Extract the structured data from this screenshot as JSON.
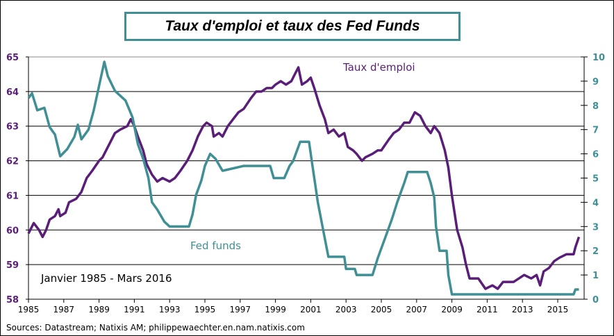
{
  "chart_data": {
    "type": "line",
    "title": "Taux d'emploi et taux des Fed Funds",
    "annotation": "Janvier 1985 - Mars 2016",
    "source": "Sources: Datastream; Natixis AM; philippewaechter.en.nam.natixis.com",
    "xlim": [
      1985,
      2016.5
    ],
    "x_ticks": [
      "1985",
      "1987",
      "1989",
      "1991",
      "1993",
      "1995",
      "1997",
      "1999",
      "2001",
      "2003",
      "2005",
      "2007",
      "2009",
      "2011",
      "2013",
      "2015"
    ],
    "y_left": {
      "lim": [
        58,
        65
      ],
      "ticks": [
        "58",
        "59",
        "60",
        "61",
        "62",
        "63",
        "64",
        "65"
      ]
    },
    "y_right": {
      "lim": [
        0,
        10
      ],
      "ticks": [
        "0",
        "1",
        "2",
        "3",
        "4",
        "5",
        "6",
        "7",
        "8",
        "9",
        "10"
      ]
    },
    "grid": true,
    "series": [
      {
        "name": "Taux d'emploi",
        "axis": "left",
        "color": "#5a1e78",
        "x": [
          1985.0,
          1985.3,
          1985.6,
          1985.8,
          1986.0,
          1986.2,
          1986.5,
          1986.7,
          1986.8,
          1987.1,
          1987.3,
          1987.7,
          1988.0,
          1988.3,
          1988.6,
          1989.0,
          1989.2,
          1989.4,
          1989.7,
          1989.9,
          1990.2,
          1990.6,
          1990.8,
          1991.0,
          1991.2,
          1991.5,
          1991.7,
          1992.0,
          1992.3,
          1992.6,
          1993.0,
          1993.3,
          1993.6,
          1994.0,
          1994.3,
          1994.6,
          1994.9,
          1995.1,
          1995.4,
          1995.5,
          1995.8,
          1996.0,
          1996.3,
          1996.6,
          1996.9,
          1997.2,
          1997.6,
          1997.9,
          1998.2,
          1998.5,
          1998.8,
          1999.0,
          1999.3,
          1999.6,
          1999.9,
          2000.1,
          2000.3,
          2000.5,
          2000.8,
          2001.0,
          2001.2,
          2001.5,
          2001.8,
          2002.0,
          2002.3,
          2002.6,
          2002.9,
          2003.1,
          2003.4,
          2003.6,
          2003.9,
          2004.1,
          2004.5,
          2004.8,
          2005.0,
          2005.4,
          2005.7,
          2006.0,
          2006.3,
          2006.6,
          2006.9,
          2007.2,
          2007.5,
          2007.8,
          2008.0,
          2008.3,
          2008.6,
          2008.8,
          2009.0,
          2009.3,
          2009.6,
          2009.8,
          2010.0,
          2010.3,
          2010.5,
          2010.9,
          2011.3,
          2011.6,
          2011.9,
          2012.2,
          2012.5,
          2012.8,
          2013.1,
          2013.5,
          2013.8,
          2014.0,
          2014.2,
          2014.5,
          2014.8,
          2015.1,
          2015.5,
          2015.9,
          2016.0,
          2016.2
        ],
        "y": [
          59.9,
          60.2,
          60.0,
          59.8,
          60.0,
          60.3,
          60.4,
          60.6,
          60.4,
          60.5,
          60.8,
          60.9,
          61.1,
          61.5,
          61.7,
          62.0,
          62.1,
          62.3,
          62.6,
          62.8,
          62.9,
          63.0,
          63.2,
          63.0,
          62.7,
          62.3,
          61.9,
          61.6,
          61.4,
          61.5,
          61.4,
          61.5,
          61.7,
          62.0,
          62.3,
          62.7,
          63.0,
          63.1,
          63.0,
          62.7,
          62.8,
          62.7,
          63.0,
          63.2,
          63.4,
          63.5,
          63.8,
          64.0,
          64.0,
          64.1,
          64.1,
          64.2,
          64.3,
          64.2,
          64.3,
          64.5,
          64.7,
          64.2,
          64.3,
          64.4,
          64.1,
          63.6,
          63.2,
          62.8,
          62.9,
          62.7,
          62.8,
          62.4,
          62.3,
          62.2,
          62.0,
          62.1,
          62.2,
          62.3,
          62.3,
          62.6,
          62.8,
          62.9,
          63.1,
          63.1,
          63.4,
          63.3,
          63.0,
          62.8,
          63.0,
          62.8,
          62.3,
          61.8,
          61.0,
          60.0,
          59.5,
          59.0,
          58.6,
          58.6,
          58.6,
          58.3,
          58.4,
          58.3,
          58.5,
          58.5,
          58.5,
          58.6,
          58.7,
          58.6,
          58.7,
          58.4,
          58.8,
          58.9,
          59.1,
          59.2,
          59.3,
          59.3,
          59.5,
          59.8
        ]
      },
      {
        "name": "Fed funds",
        "axis": "right",
        "color": "#3f8f94",
        "x": [
          1985.0,
          1985.2,
          1985.5,
          1985.9,
          1986.2,
          1986.5,
          1986.8,
          1987.2,
          1987.6,
          1987.8,
          1988.0,
          1988.4,
          1988.7,
          1989.0,
          1989.3,
          1989.5,
          1989.9,
          1990.5,
          1990.9,
          1991.2,
          1991.5,
          1991.8,
          1992.0,
          1992.3,
          1992.7,
          1993.0,
          1994.1,
          1994.3,
          1994.5,
          1994.8,
          1995.0,
          1995.3,
          1995.6,
          1996.0,
          1997.2,
          1998.7,
          1998.9,
          1999.5,
          1999.8,
          2000.0,
          2000.4,
          2000.9,
          2001.1,
          2001.4,
          2001.8,
          2002.0,
          2002.9,
          2003.0,
          2003.5,
          2003.6,
          2004.5,
          2004.8,
          2005.2,
          2005.6,
          2005.9,
          2006.3,
          2006.5,
          2007.6,
          2007.8,
          2008.0,
          2008.1,
          2008.3,
          2008.7,
          2008.8,
          2009.0,
          2015.9,
          2016.0,
          2016.2
        ],
        "y": [
          8.3,
          8.5,
          7.8,
          7.9,
          7.1,
          6.8,
          5.9,
          6.2,
          6.7,
          7.2,
          6.6,
          7.0,
          7.8,
          8.8,
          9.8,
          9.2,
          8.6,
          8.2,
          7.5,
          6.4,
          5.8,
          5.0,
          4.0,
          3.7,
          3.2,
          3.0,
          3.0,
          3.5,
          4.3,
          4.9,
          5.5,
          6.0,
          5.8,
          5.3,
          5.5,
          5.5,
          5.0,
          5.0,
          5.5,
          5.7,
          6.5,
          6.5,
          5.5,
          4.0,
          2.5,
          1.75,
          1.75,
          1.25,
          1.25,
          1.0,
          1.0,
          1.7,
          2.5,
          3.3,
          4.0,
          4.8,
          5.25,
          5.25,
          4.8,
          4.2,
          3.0,
          2.0,
          2.0,
          1.0,
          0.2,
          0.2,
          0.4,
          0.4
        ]
      }
    ]
  }
}
